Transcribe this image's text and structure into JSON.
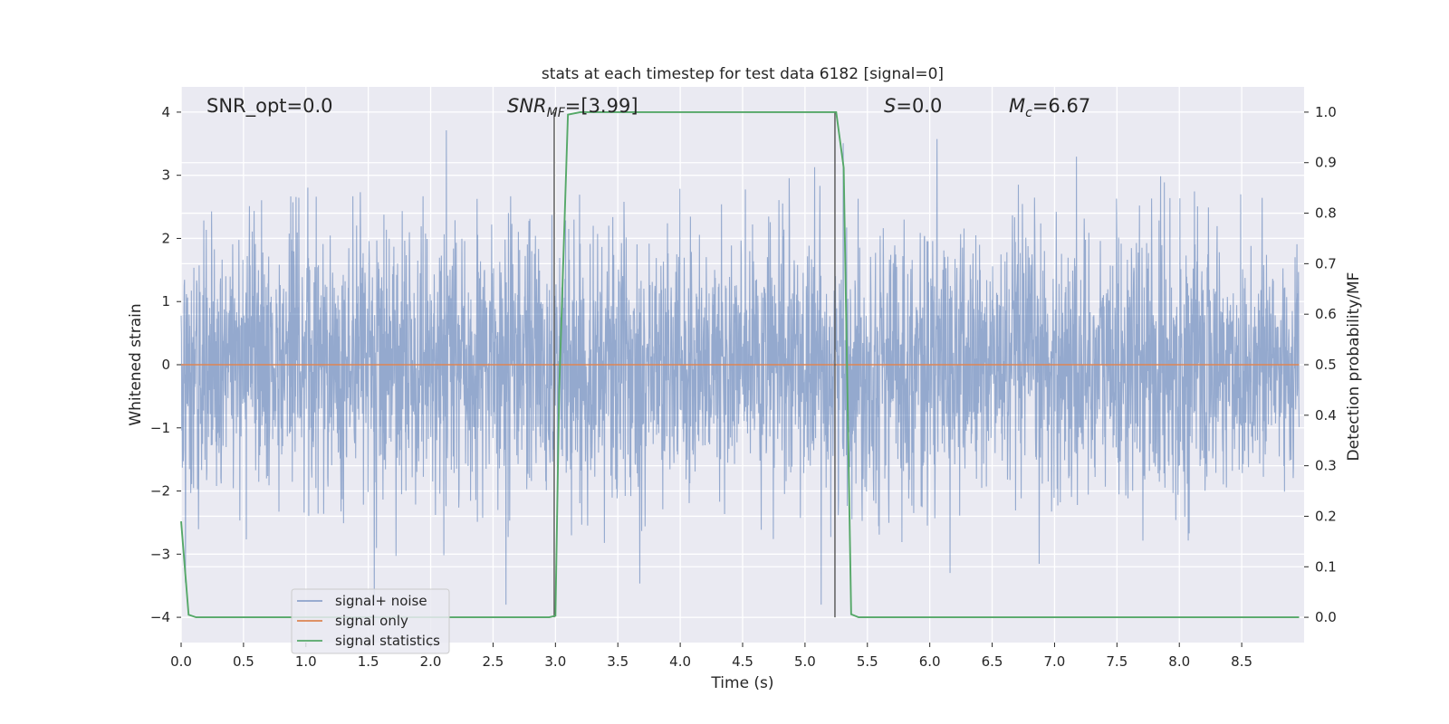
{
  "chart_data": {
    "type": "line",
    "title": "stats at each timestep for test data 6182 [signal=0]",
    "xlabel": "Time (s)",
    "ylabel_left": "Whitened strain",
    "ylabel_right": "Detection probability/MF",
    "xlim": [
      0.0,
      9.0
    ],
    "ylim_left": [
      -4.4,
      4.4
    ],
    "ylim_right": [
      -0.05,
      1.05
    ],
    "x_ticks": [
      "0.0",
      "0.5",
      "1.0",
      "1.5",
      "2.0",
      "2.5",
      "3.0",
      "3.5",
      "4.0",
      "4.5",
      "5.0",
      "5.5",
      "6.0",
      "6.5",
      "7.0",
      "7.5",
      "8.0",
      "8.5"
    ],
    "y_ticks_left": [
      "−4",
      "−3",
      "−2",
      "−1",
      "0",
      "1",
      "2",
      "3",
      "4"
    ],
    "y_ticks_right": [
      "0.0",
      "0.1",
      "0.2",
      "0.3",
      "0.4",
      "0.5",
      "0.6",
      "0.7",
      "0.8",
      "0.9",
      "1.0"
    ],
    "grid": true,
    "legend": {
      "placement": "lower-left",
      "entries": [
        "signal+ noise",
        "signal only",
        "signal statistics"
      ]
    },
    "colors": {
      "signal_noise": "#4c72b0",
      "signal_only": "#dd8452",
      "signal_statistics": "#55a868",
      "axes_bg": "#eaeaf2",
      "vline": "#555555"
    },
    "series": [
      {
        "name": "signal+ noise",
        "axis": "left",
        "description": "whitened strain noise, roughly Gaussian, peaks reaching about +4.0 and -3.8",
        "x_range": [
          0.0,
          8.96
        ],
        "peak_max": 4.0,
        "peak_min": -3.8
      },
      {
        "name": "signal only",
        "axis": "left",
        "x": [
          0.0,
          8.96
        ],
        "y": [
          0.0,
          0.0
        ]
      },
      {
        "name": "signal statistics",
        "axis": "right",
        "x": [
          0.0,
          0.06,
          0.12,
          2.95,
          3.0,
          3.03,
          3.1,
          3.2,
          5.0,
          5.25,
          5.31,
          5.37,
          5.43,
          8.96
        ],
        "y": [
          0.19,
          0.005,
          0.0,
          0.0,
          0.003,
          0.45,
          0.995,
          1.0,
          1.0,
          1.0,
          0.89,
          0.006,
          0.0,
          0.0
        ]
      }
    ],
    "vertical_lines_x": [
      2.99,
      5.24
    ],
    "annotations": {
      "snr_opt": "SNR_opt=0.0",
      "snr_mf_base": "SNR",
      "snr_mf_sub": "MF",
      "snr_mf_value": "=[3.99]",
      "s_base": "S",
      "s_value": "=0.0",
      "mc_base": "M",
      "mc_sub": "c",
      "mc_value": "=6.67"
    }
  }
}
